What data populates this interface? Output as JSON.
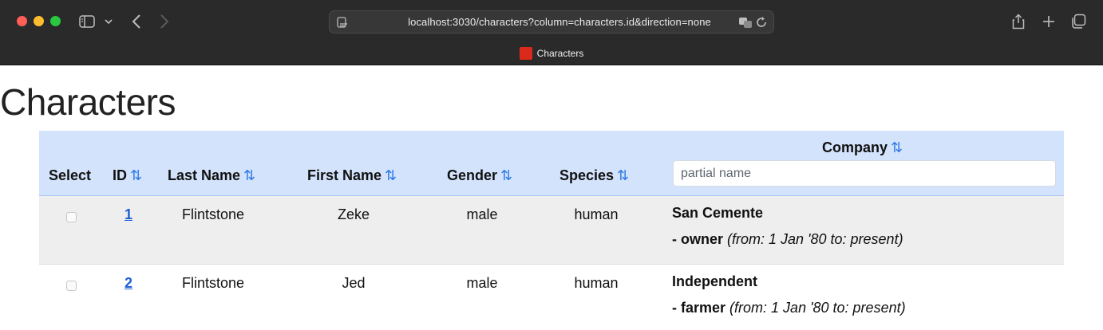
{
  "browser": {
    "url": "localhost:3030/characters?column=characters.id&direction=none",
    "tab_title": "Characters",
    "tab_favicon_color": "#d92a1c"
  },
  "page": {
    "title": "Characters"
  },
  "table": {
    "headers": {
      "select": "Select",
      "id": "ID",
      "last_name": "Last Name",
      "first_name": "First Name",
      "gender": "Gender",
      "species": "Species",
      "company": "Company"
    },
    "sort_icon": "⇅",
    "company_filter": {
      "value": "",
      "placeholder": "partial name"
    },
    "rows": [
      {
        "selected": false,
        "id": "1",
        "last_name": "Flintstone",
        "first_name": "Zeke",
        "gender": "male",
        "species": "human",
        "company": "San Cemente",
        "role_prefix": "- owner",
        "role_dates": "(from: 1 Jan '80 to: present)"
      },
      {
        "selected": false,
        "id": "2",
        "last_name": "Flintstone",
        "first_name": "Jed",
        "gender": "male",
        "species": "human",
        "company": "Independent",
        "role_prefix": "- farmer",
        "role_dates": "(from: 1 Jan '80 to: present)"
      }
    ]
  },
  "colors": {
    "header_bg": "#d3e3fc",
    "sort_icon": "#2f7ae5",
    "link": "#1d5fd6",
    "odd_row": "#eeeeee"
  }
}
